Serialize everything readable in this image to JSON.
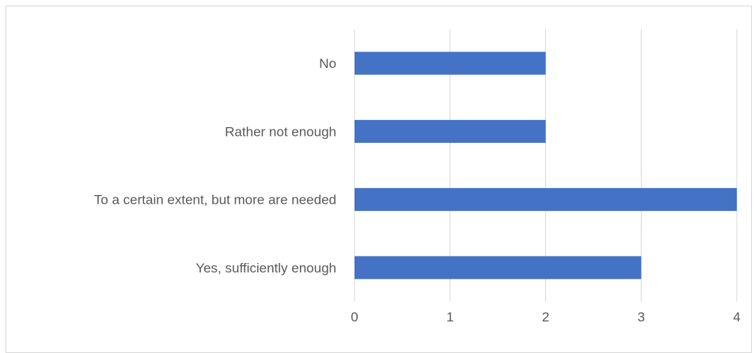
{
  "chart_data": {
    "type": "bar",
    "orientation": "horizontal",
    "categories": [
      "No",
      "Rather not enough",
      "To a certain extent, but more are needed",
      "Yes, sufficiently enough"
    ],
    "values": [
      2,
      2,
      4,
      3
    ],
    "xlim": [
      0,
      4
    ],
    "x_ticks": [
      "0",
      "1",
      "2",
      "3",
      "4"
    ],
    "grid": "vertical",
    "legend": "none",
    "bar_color": "#4472c4",
    "grid_color": "#d9d9d9",
    "text_color": "#595959"
  }
}
